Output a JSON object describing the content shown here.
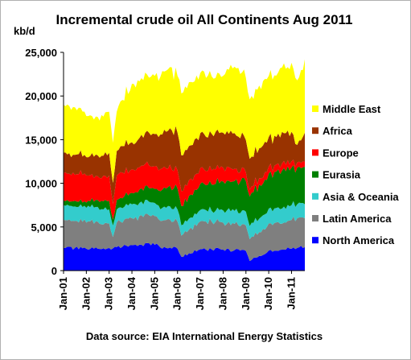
{
  "chart_data": {
    "type": "area",
    "stacked": true,
    "title": "Incremental crude oil All Continents Aug 2011",
    "ylabel": "kb/d",
    "xlabel": "",
    "ylim": [
      0,
      25000
    ],
    "yticks": [
      0,
      5000,
      10000,
      15000,
      20000,
      25000
    ],
    "ytick_labels": [
      "0",
      "5,000",
      "10,000",
      "15,000",
      "20,000",
      "25,000"
    ],
    "x_start": "2001-01",
    "x_end": "2011-08",
    "xtick_labels": [
      "Jan-01",
      "Jan-02",
      "Jan-03",
      "Jan-04",
      "Jan-05",
      "Jan-06",
      "Jan-07",
      "Jan-08",
      "Jan-09",
      "Jan-10",
      "Jan-11"
    ],
    "grid": false,
    "legend_position": "right",
    "source": "Data source: EIA International Energy Statistics",
    "anchor_dates": [
      "2001-01",
      "2002-01",
      "2002-07",
      "2003-01",
      "2003-03",
      "2003-05",
      "2004-01",
      "2005-01",
      "2005-07",
      "2006-01",
      "2006-03",
      "2007-01",
      "2008-01",
      "2008-07",
      "2009-01",
      "2009-03",
      "2010-01",
      "2011-01",
      "2011-04",
      "2011-08"
    ],
    "series": [
      {
        "name": "North America",
        "color": "#0000ff",
        "values": [
          2600,
          2500,
          2500,
          2600,
          2550,
          2700,
          2900,
          2950,
          2600,
          2500,
          1600,
          2450,
          2400,
          2350,
          2250,
          1100,
          2300,
          2500,
          2600,
          2700
        ]
      },
      {
        "name": "Latin America",
        "color": "#7f7f7f",
        "values": [
          3200,
          3000,
          3100,
          2800,
          1300,
          2800,
          3100,
          3300,
          3200,
          3100,
          2400,
          3200,
          3100,
          3000,
          2900,
          2500,
          3100,
          3300,
          3400,
          3300
        ]
      },
      {
        "name": "Asia & Oceania",
        "color": "#33cccc",
        "values": [
          1700,
          1700,
          1700,
          1600,
          1300,
          1500,
          1600,
          1500,
          1400,
          1400,
          1200,
          1300,
          1400,
          1500,
          1600,
          1500,
          1700,
          1700,
          1600,
          1600
        ]
      },
      {
        "name": "Eurasia",
        "color": "#008000",
        "values": [
          500,
          600,
          800,
          1000,
          700,
          1100,
          1300,
          1600,
          2200,
          2400,
          2200,
          3000,
          3300,
          3400,
          3500,
          3400,
          4000,
          4300,
          4200,
          4300
        ]
      },
      {
        "name": "Europe",
        "color": "#ff0000",
        "values": [
          3200,
          3100,
          2700,
          2900,
          1800,
          2800,
          2700,
          2600,
          2300,
          2100,
          1700,
          1800,
          1600,
          1400,
          1000,
          800,
          800,
          700,
          600,
          600
        ]
      },
      {
        "name": "Africa",
        "color": "#993300",
        "values": [
          2300,
          2100,
          2400,
          2600,
          2400,
          2800,
          3100,
          3700,
          4200,
          4300,
          4100,
          4000,
          4000,
          4100,
          3700,
          3500,
          3400,
          3400,
          2000,
          3300
        ]
      },
      {
        "name": "Middle East",
        "color": "#ffff00",
        "values": [
          5500,
          4700,
          4400,
          4700,
          4600,
          4500,
          6700,
          6650,
          7000,
          6500,
          7100,
          6900,
          6500,
          7600,
          7100,
          6800,
          7000,
          7900,
          7400,
          8400
        ]
      }
    ]
  }
}
